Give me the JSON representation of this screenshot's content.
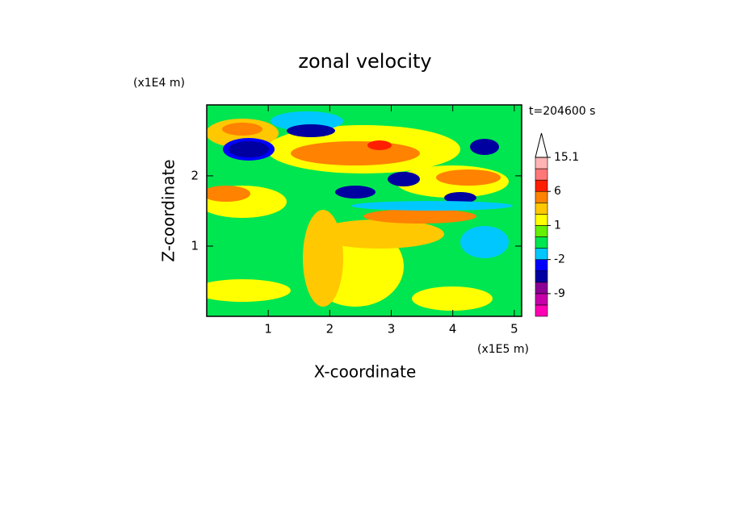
{
  "chart_data": {
    "type": "contour",
    "title": "zonal velocity",
    "x_label": "X-coordinate",
    "y_label": "Z-coordinate",
    "x_multiplier": "(x1E5 m)",
    "y_multiplier": "(x1E4 m)",
    "time_label": "t=204600 s",
    "xlim": [
      0,
      5.12
    ],
    "xticks": [
      1,
      2,
      3,
      4,
      5
    ],
    "ylim": [
      0,
      3.01
    ],
    "yticks": [
      1,
      2
    ],
    "colorbar": {
      "levels": [
        -15,
        -12,
        -9,
        -6,
        -4,
        -2,
        -1,
        0,
        1,
        2,
        4,
        6,
        9,
        12,
        15.1
      ],
      "colors": [
        "#ff00b4",
        "#c800aa",
        "#8c0096",
        "#0000a0",
        "#0000ff",
        "#00c8ff",
        "#00e650",
        "#64f000",
        "#ffff00",
        "#ffc800",
        "#ff8200",
        "#ff1e00",
        "#ff7878",
        "#ffb4b4"
      ],
      "ticks": [
        -9,
        -2,
        1,
        6,
        15.1
      ]
    }
  }
}
